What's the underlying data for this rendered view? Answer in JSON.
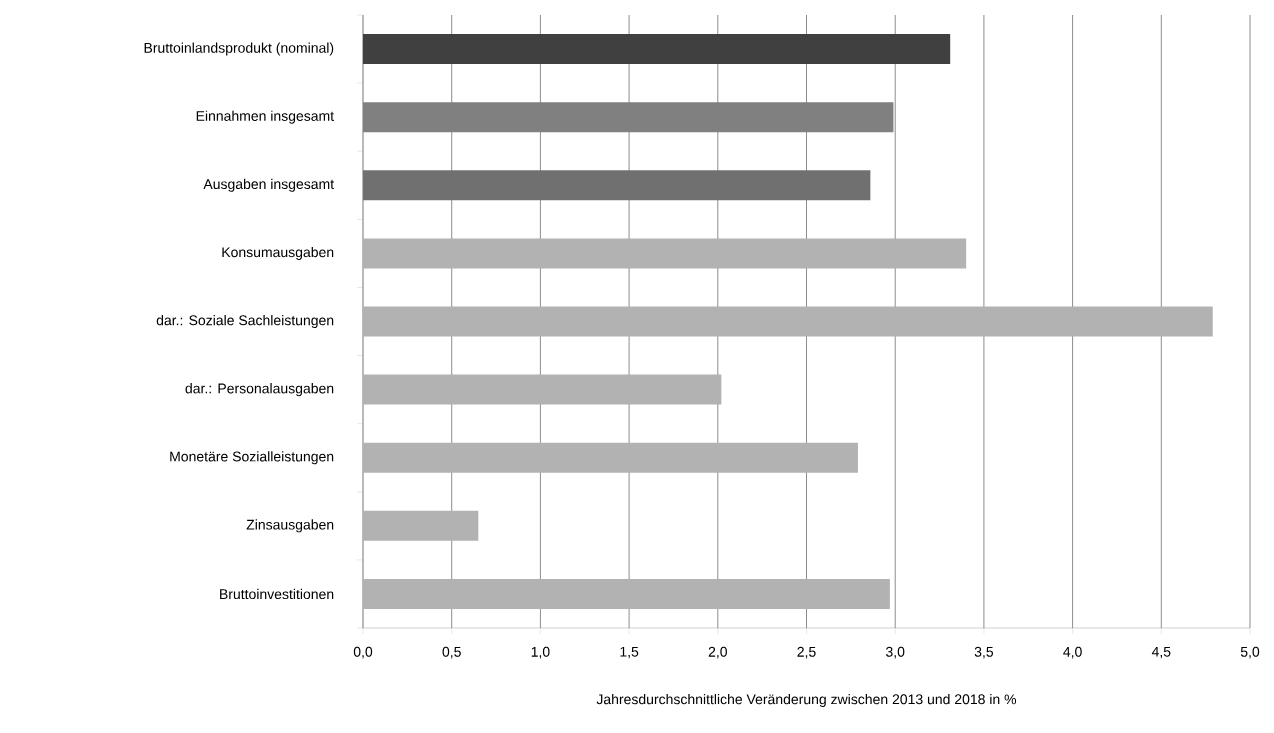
{
  "chart_data": {
    "type": "bar",
    "orientation": "horizontal",
    "xlabel": "Jahresdurchschnittliche Veränderung zwischen 2013 und 2018 in %",
    "categories": [
      "Bruttoinlandsprodukt (nominal)",
      "Einnahmen insgesamt",
      "Ausgaben insgesamt",
      "Konsumausgaben",
      "dar.: Soziale Sachleistungen",
      "dar.: Personalausgaben",
      "Monetäre Sozialleistungen",
      "Zinsausgaben",
      "Bruttoinvestitionen"
    ],
    "values": [
      3.31,
      2.99,
      2.86,
      3.4,
      4.79,
      2.02,
      2.79,
      0.65,
      2.97
    ],
    "colors": [
      "#404040",
      "#808080",
      "#707070",
      "#b2b2b2",
      "#b2b2b2",
      "#b2b2b2",
      "#b2b2b2",
      "#b2b2b2",
      "#b2b2b2"
    ],
    "xlim": [
      0,
      5
    ],
    "xticks": [
      {
        "value": 0,
        "label": "0,0"
      },
      {
        "value": 0.5,
        "label": "0,5"
      },
      {
        "value": 1,
        "label": "1,0"
      },
      {
        "value": 1.5,
        "label": "1,5"
      },
      {
        "value": 2,
        "label": "2,0"
      },
      {
        "value": 2.5,
        "label": "2,5"
      },
      {
        "value": 3,
        "label": "3,0"
      },
      {
        "value": 3.5,
        "label": "3,5"
      },
      {
        "value": 4,
        "label": "4,0"
      },
      {
        "value": 4.5,
        "label": "4,5"
      },
      {
        "value": 5,
        "label": "5,0"
      }
    ],
    "grid": "x"
  }
}
